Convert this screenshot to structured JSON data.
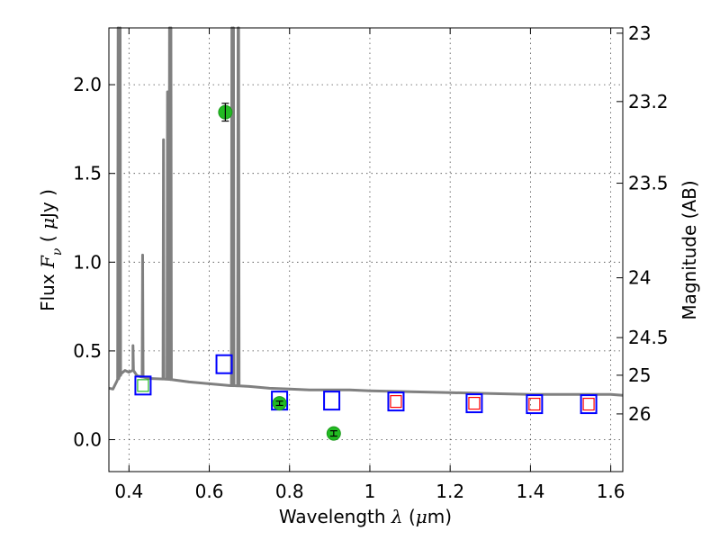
{
  "chart_data": {
    "type": "scatter",
    "title": "",
    "xlabel": {
      "text": "Wavelength",
      "math": "λ",
      "unit_open": " (",
      "unit_math": "μ",
      "unit_text": "m)"
    },
    "ylabel": {
      "text": "Flux",
      "math": "F",
      "math_sub": "ν",
      "unit_open": "  ( ",
      "unit_math": "μ",
      "unit_text": "Jy )"
    },
    "ylabel_right": "Magnitude (AB)",
    "xlim": [
      0.35,
      1.63
    ],
    "ylim": [
      -0.18,
      2.32
    ],
    "x_ticks": [
      0.4,
      0.6,
      0.8,
      1.0,
      1.2,
      1.4,
      1.6
    ],
    "x_tick_labels": [
      "0.4",
      "0.6",
      "0.8",
      "1",
      "1.2",
      "1.4",
      "1.6"
    ],
    "y_ticks": [
      0.0,
      0.5,
      1.0,
      1.5,
      2.0
    ],
    "y_tick_labels": [
      "0.0",
      "0.5",
      "1.0",
      "1.5",
      "2.0"
    ],
    "right_ticks": [
      {
        "label": "23",
        "flux": 2.29
      },
      {
        "label": "23.2",
        "flux": 1.905
      },
      {
        "label": "23.5",
        "flux": 1.445
      },
      {
        "label": "24",
        "flux": 0.912
      },
      {
        "label": "24.5",
        "flux": 0.575
      },
      {
        "label": "25",
        "flux": 0.363
      },
      {
        "label": "26",
        "flux": 0.145
      }
    ],
    "grid": true,
    "colors": {
      "model": "#808080",
      "observed": "#22bb22",
      "model_photometry": "#0000ff",
      "upper_limits": "#ff0000"
    },
    "series": [
      {
        "kind": "model_spectrum",
        "continuum": [
          [
            0.35,
            0.29
          ],
          [
            0.36,
            0.285
          ],
          [
            0.37,
            0.33
          ],
          [
            0.38,
            0.37
          ],
          [
            0.39,
            0.39
          ],
          [
            0.4,
            0.38
          ],
          [
            0.41,
            0.39
          ],
          [
            0.42,
            0.36
          ],
          [
            0.45,
            0.345
          ],
          [
            0.5,
            0.34
          ],
          [
            0.55,
            0.325
          ],
          [
            0.6,
            0.315
          ],
          [
            0.65,
            0.305
          ],
          [
            0.7,
            0.3
          ],
          [
            0.75,
            0.29
          ],
          [
            0.8,
            0.285
          ],
          [
            0.85,
            0.28
          ],
          [
            0.9,
            0.28
          ],
          [
            0.95,
            0.28
          ],
          [
            1.0,
            0.275
          ],
          [
            1.1,
            0.27
          ],
          [
            1.2,
            0.265
          ],
          [
            1.3,
            0.26
          ],
          [
            1.4,
            0.255
          ],
          [
            1.5,
            0.255
          ],
          [
            1.6,
            0.255
          ],
          [
            1.63,
            0.25
          ]
        ],
        "lines": [
          {
            "x": 0.373,
            "peak": 2.32
          },
          {
            "x": 0.378,
            "peak": 2.32
          },
          {
            "x": 0.41,
            "peak": 0.53
          },
          {
            "x": 0.434,
            "peak": 1.04
          },
          {
            "x": 0.486,
            "peak": 1.69
          },
          {
            "x": 0.496,
            "peak": 1.96
          },
          {
            "x": 0.501,
            "peak": 2.32
          },
          {
            "x": 0.5045,
            "peak": 2.32
          },
          {
            "x": 0.6563,
            "peak": 2.32
          },
          {
            "x": 0.6603,
            "peak": 2.32
          },
          {
            "x": 0.6718,
            "peak": 2.32
          },
          {
            "x": 0.6731,
            "peak": 2.32
          }
        ]
      },
      {
        "kind": "observed",
        "points": [
          {
            "x": 0.64,
            "y": 1.845,
            "yerr": 0.05
          },
          {
            "x": 0.775,
            "y": 0.205,
            "yerr": 0.012
          },
          {
            "x": 0.91,
            "y": 0.035,
            "yerr": 0.015
          }
        ]
      },
      {
        "kind": "model_photometry",
        "points": [
          {
            "x": 0.435,
            "y": 0.305
          },
          {
            "x": 0.637,
            "y": 0.425
          },
          {
            "x": 0.775,
            "y": 0.22
          },
          {
            "x": 0.905,
            "y": 0.22
          },
          {
            "x": 1.065,
            "y": 0.215
          },
          {
            "x": 1.26,
            "y": 0.205
          },
          {
            "x": 1.41,
            "y": 0.2
          },
          {
            "x": 1.545,
            "y": 0.2
          }
        ]
      },
      {
        "kind": "upper_limits",
        "points": [
          {
            "x": 0.435,
            "y": 0.305
          },
          {
            "x": 1.065,
            "y": 0.215
          },
          {
            "x": 1.26,
            "y": 0.205
          },
          {
            "x": 1.41,
            "y": 0.2
          },
          {
            "x": 1.545,
            "y": 0.2
          }
        ]
      }
    ]
  }
}
